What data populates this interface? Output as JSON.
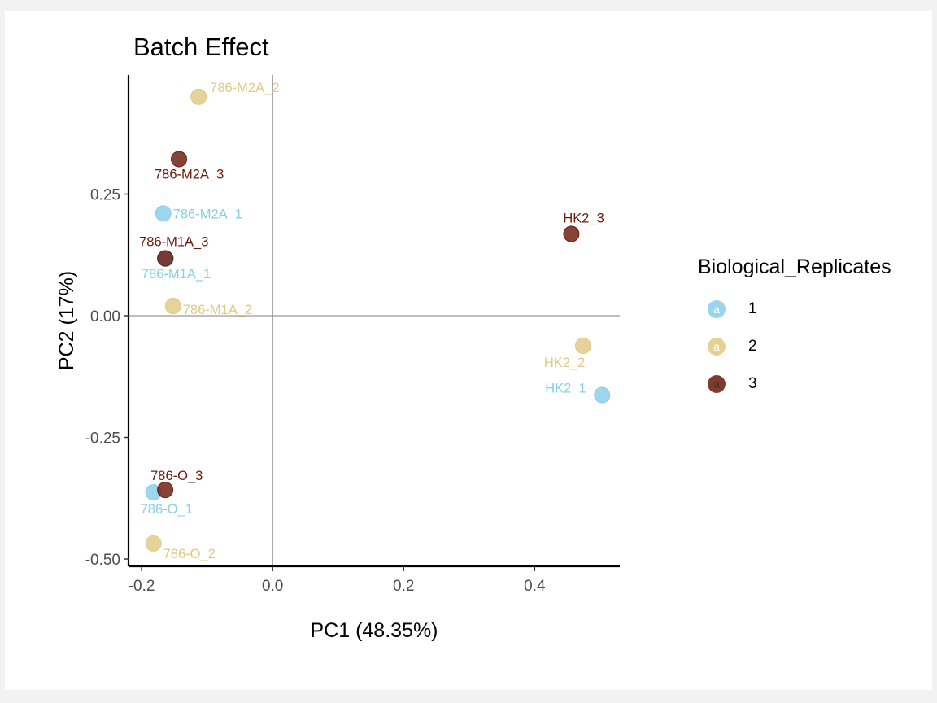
{
  "title": "Batch Effect",
  "chart_data": {
    "type": "scatter",
    "title": "Batch Effect",
    "xlabel": "PC1 (48.35%)",
    "ylabel": "PC2 (17%)",
    "xlim": [
      -0.22,
      0.53
    ],
    "ylim": [
      -0.515,
      0.495
    ],
    "x_ticks": [
      -0.2,
      0.0,
      0.2,
      0.4
    ],
    "x_tick_labels": [
      "-0.2",
      "0.0",
      "0.2",
      "0.4"
    ],
    "y_ticks": [
      0.25,
      0.0,
      -0.25,
      -0.5
    ],
    "y_tick_labels": [
      "0.25",
      "0.00",
      "-0.25",
      "-0.50"
    ],
    "reference_lines": {
      "x": 0,
      "y": 0
    },
    "grid": false,
    "legend_position": "right",
    "legend_title": "Biological_Replicates",
    "legend_key_glyph": "a",
    "series": [
      {
        "name": "1",
        "color": "#87ceeb",
        "points": [
          {
            "label": "786-M2A_1",
            "x": -0.167,
            "y": 0.21
          },
          {
            "label": "786-M1A_1",
            "x": -0.163,
            "y": 0.117
          },
          {
            "label": "HK2_1",
            "x": 0.503,
            "y": -0.163
          },
          {
            "label": "786-O_1",
            "x": -0.182,
            "y": -0.363
          }
        ]
      },
      {
        "name": "2",
        "color": "#e1c982",
        "points": [
          {
            "label": "786-M2A_2",
            "x": -0.113,
            "y": 0.45
          },
          {
            "label": "786-M1A_2",
            "x": -0.152,
            "y": 0.02
          },
          {
            "label": "HK2_2",
            "x": 0.474,
            "y": -0.062
          },
          {
            "label": "786-O_2",
            "x": -0.182,
            "y": -0.468
          }
        ]
      },
      {
        "name": "3",
        "color": "#6b1a0b",
        "points": [
          {
            "label": "786-M2A_3",
            "x": -0.143,
            "y": 0.322
          },
          {
            "label": "786-M1A_3",
            "x": -0.164,
            "y": 0.118
          },
          {
            "label": "HK2_3",
            "x": 0.456,
            "y": 0.168
          },
          {
            "label": "786-O_3",
            "x": -0.164,
            "y": -0.358
          }
        ]
      }
    ]
  }
}
